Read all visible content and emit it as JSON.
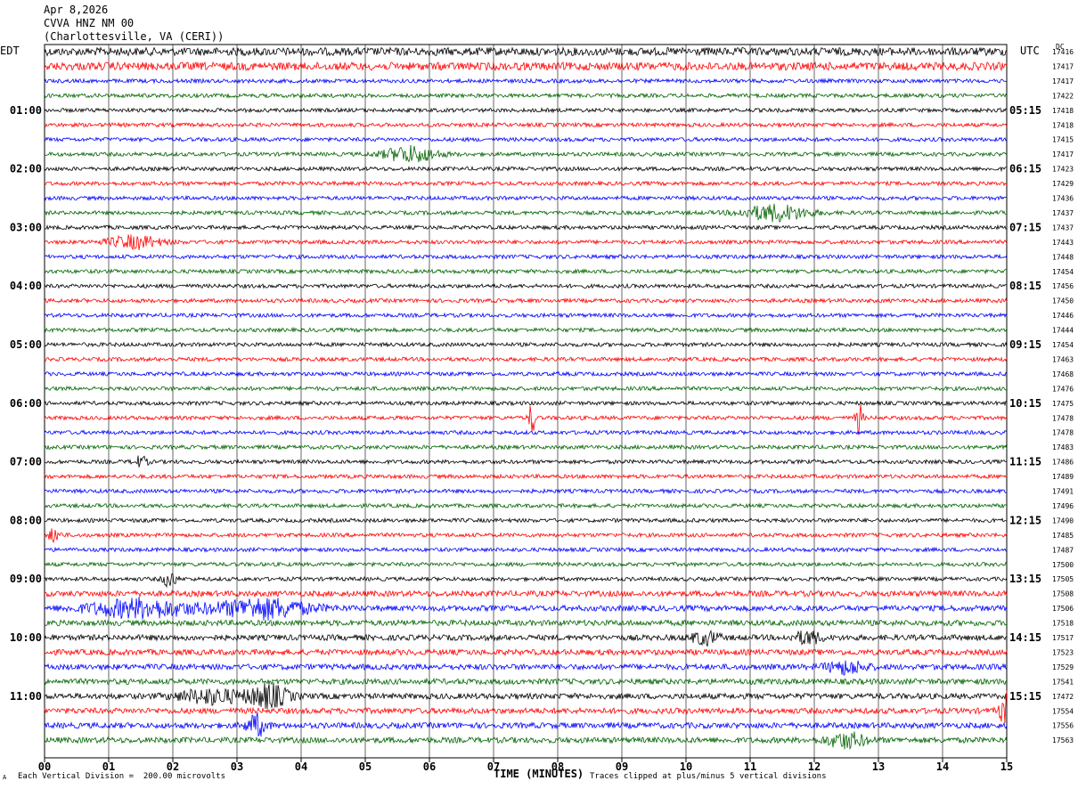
{
  "header": {
    "date": "Apr 8,2026",
    "station": "CVVA HNZ NM 00",
    "location": "(Charlottesville, VA (CERI))"
  },
  "left_timezone": "EDT",
  "right_timezone": "UTC",
  "right_column_label": "DC",
  "footer": {
    "scale_note": "Each Vertical Division =  200.00 microvolts",
    "xaxis_title": "TIME (MINUTES)",
    "clip_note": "Traces clipped at plus/minus 5 vertical divisions",
    "marker": "A"
  },
  "colors": {
    "trace_cycle": [
      "#000000",
      "#ff0000",
      "#0000ff",
      "#006400"
    ],
    "grid": "#000000"
  },
  "chart_data": {
    "type": "line",
    "description_kind": "helicorder",
    "x_ticks": [
      "00",
      "01",
      "02",
      "03",
      "04",
      "05",
      "06",
      "07",
      "08",
      "09",
      "10",
      "11",
      "12",
      "13",
      "14",
      "15"
    ],
    "xlim": [
      0,
      15
    ],
    "left_hour_labels": [
      "01:00",
      "02:00",
      "03:00",
      "04:00",
      "05:00",
      "06:00",
      "07:00",
      "08:00",
      "09:00",
      "10:00",
      "11:00"
    ],
    "right_hour_labels": [
      "05:15",
      "06:15",
      "07:15",
      "08:15",
      "09:15",
      "10:15",
      "11:15",
      "12:15",
      "13:15",
      "14:15",
      "15:15"
    ],
    "dc_offsets": [
      17416,
      17417,
      17417,
      17422,
      17418,
      17418,
      17415,
      17417,
      17423,
      17429,
      17436,
      17437,
      17437,
      17443,
      17448,
      17454,
      17456,
      17450,
      17446,
      17444,
      17454,
      17463,
      17468,
      17476,
      17475,
      17478,
      17478,
      17483,
      17486,
      17489,
      17491,
      17496,
      17490,
      17485,
      17487,
      17500,
      17505,
      17508,
      17506,
      17518,
      17517,
      17523,
      17529,
      17541,
      17472,
      17554,
      17556,
      17563
    ]
  }
}
